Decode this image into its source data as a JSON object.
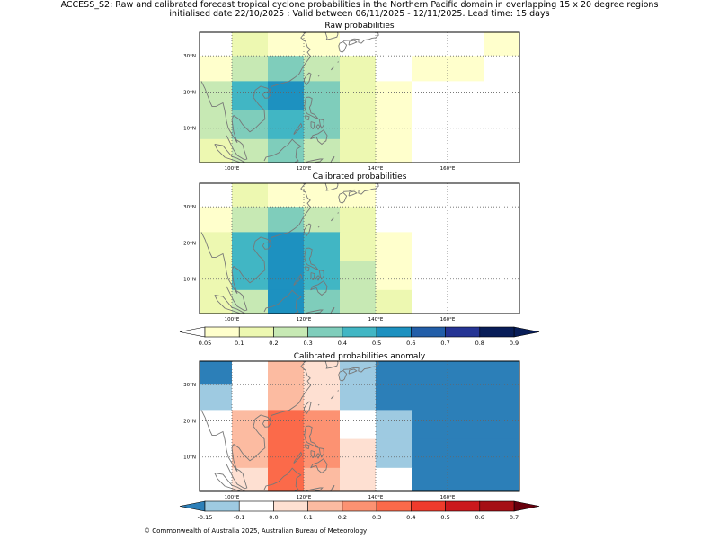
{
  "header": {
    "line1": "ACCESS_S2: Raw and calibrated forecast tropical cyclone probabilities in the Northern Pacific domain in overlapping 15 x 20 degree regions",
    "line2": "initialised date 22/10/2025 :  Valid between 06/11/2025 - 12/11/2025. Lead time: 15 days"
  },
  "panels": [
    {
      "title": "Raw probabilities",
      "grid": [
        [
          "#ffffff",
          "#edf8b1",
          "#ffffcc",
          "#ffffcc",
          "#ffffff",
          "#ffffff",
          "#ffffff",
          "#ffffff",
          "#ffffcc"
        ],
        [
          "#ffffcc",
          "#c7e9b4",
          "#7fcdbb",
          "#c7e9b4",
          "#edf8b1",
          "#ffffff",
          "#ffffcc",
          "#ffffcc",
          "#ffffff"
        ],
        [
          "#c7e9b4",
          "#41b6c4",
          "#1d91c0",
          "#7fcdbb",
          "#edf8b1",
          "#ffffcc",
          "#ffffff",
          "#ffffff",
          "#ffffff"
        ],
        [
          "#c7e9b4",
          "#7fcdbb",
          "#41b6c4",
          "#7fcdbb",
          "#edf8b1",
          "#ffffcc",
          "#ffffff",
          "#ffffff",
          "#ffffff"
        ],
        [
          "#edf8b1",
          "#c7e9b4",
          "#7fcdbb",
          "#c7e9b4",
          "#edf8b1",
          "#ffffcc",
          "#ffffff",
          "#ffffff",
          "#ffffff"
        ]
      ]
    },
    {
      "title": "Calibrated probabilities",
      "grid": [
        [
          "#ffffff",
          "#edf8b1",
          "#ffffcc",
          "#ffffcc",
          "#ffffcc",
          "#ffffff",
          "#ffffff",
          "#ffffff",
          "#ffffff"
        ],
        [
          "#ffffcc",
          "#c7e9b4",
          "#7fcdbb",
          "#c7e9b4",
          "#edf8b1",
          "#ffffff",
          "#ffffff",
          "#ffffff",
          "#ffffff"
        ],
        [
          "#edf8b1",
          "#41b6c4",
          "#1d91c0",
          "#41b6c4",
          "#edf8b1",
          "#ffffcc",
          "#ffffff",
          "#ffffff",
          "#ffffff"
        ],
        [
          "#edf8b1",
          "#41b6c4",
          "#1d91c0",
          "#41b6c4",
          "#c7e9b4",
          "#ffffcc",
          "#ffffff",
          "#ffffff",
          "#ffffff"
        ],
        [
          "#edf8b1",
          "#c7e9b4",
          "#1d91c0",
          "#7fcdbb",
          "#c7e9b4",
          "#edf8b1",
          "#ffffff",
          "#ffffff",
          "#ffffff"
        ]
      ]
    },
    {
      "title": "Calibrated probabilities anomaly",
      "grid": [
        [
          "#2c7fb8",
          "#ffffff",
          "#fcbba1",
          "#fee0d2",
          "#9ecae1",
          "#2c7fb8",
          "#2c7fb8",
          "#2c7fb8",
          "#2c7fb8"
        ],
        [
          "#9ecae1",
          "#ffffff",
          "#fcbba1",
          "#fee0d2",
          "#9ecae1",
          "#2c7fb8",
          "#2c7fb8",
          "#2c7fb8",
          "#2c7fb8"
        ],
        [
          "#ffffff",
          "#fcbba1",
          "#fb6a4a",
          "#fc9272",
          "#ffffff",
          "#9ecae1",
          "#2c7fb8",
          "#2c7fb8",
          "#2c7fb8"
        ],
        [
          "#ffffff",
          "#fcbba1",
          "#fb6a4a",
          "#fc9272",
          "#fee0d2",
          "#9ecae1",
          "#2c7fb8",
          "#2c7fb8",
          "#2c7fb8"
        ],
        [
          "#ffffff",
          "#fee0d2",
          "#fb6a4a",
          "#fcbba1",
          "#fee0d2",
          "#ffffff",
          "#2c7fb8",
          "#2c7fb8",
          "#2c7fb8"
        ]
      ]
    }
  ],
  "axes": {
    "x_ticks": [
      "100°E",
      "120°E",
      "140°E",
      "160°E"
    ],
    "y_ticks": [
      "30°N",
      "20°N",
      "10°N"
    ]
  },
  "colorbars": [
    {
      "name": "probability",
      "labels": [
        "0.05",
        "0.1",
        "0.2",
        "0.3",
        "0.4",
        "0.5",
        "0.6",
        "0.7",
        "0.8",
        "0.9"
      ],
      "colors": [
        "#ffffcc",
        "#edf8b1",
        "#c7e9b4",
        "#7fcdbb",
        "#41b6c4",
        "#1d91c0",
        "#225ea8",
        "#253494",
        "#081d58"
      ],
      "under": "#ffffff",
      "over": "#081d58"
    },
    {
      "name": "anomaly",
      "labels": [
        "-0.15",
        "-0.1",
        "0.0",
        "0.1",
        "0.2",
        "0.3",
        "0.4",
        "0.5",
        "0.6",
        "0.7"
      ],
      "colors": [
        "#9ecae1",
        "#ffffff",
        "#fee0d2",
        "#fcbba1",
        "#fc9272",
        "#fb6a4a",
        "#ef3b2c",
        "#cb181d",
        "#a50f15"
      ],
      "under": "#2c7fb8",
      "over": "#67000d"
    }
  ],
  "footer": {
    "copyright": "© Commonwealth of Australia 2025, Australian Bureau of Meteorology"
  }
}
